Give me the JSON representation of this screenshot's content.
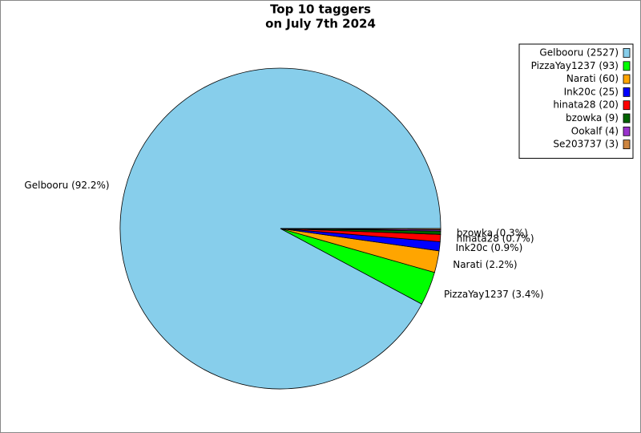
{
  "chart_data": {
    "type": "pie",
    "title": [
      "Top 10 taggers",
      "on July 7th 2024"
    ],
    "legend_labels": [
      "Gelbooru (2527)",
      "PizzaYay1237 (93)",
      "Narati (60)",
      "Ink20c (25)",
      "hinata28 (20)",
      "bzowka (9)",
      "Ookalf (4)",
      "Se203737 (3)"
    ],
    "values": [
      2527,
      93,
      60,
      25,
      20,
      9,
      4,
      3
    ],
    "value_labels": [
      "Gelbooru (92.2%)",
      "PizzaYay1237 (3.4%)",
      "Narati (2.2%)",
      "Ink20c (0.9%)",
      "hinata28 (0.7%)",
      "bzowka (0.3%)",
      null,
      null
    ],
    "colors": [
      "#87ceeb",
      "#00ff00",
      "#ffa500",
      "#0000ff",
      "#ff0000",
      "#006400",
      "#9932cc",
      "#cd853f"
    ],
    "legend": "upper right"
  }
}
